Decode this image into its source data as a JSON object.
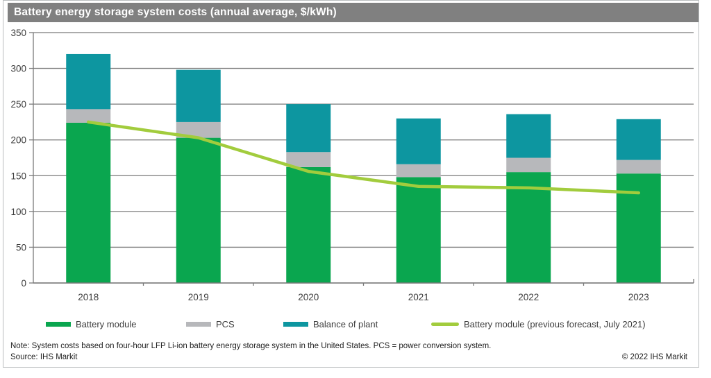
{
  "chart_data": {
    "type": "bar",
    "stacked": true,
    "title": "Battery energy storage system costs (annual average, $/kWh)",
    "categories": [
      "2018",
      "2019",
      "2020",
      "2021",
      "2022",
      "2023"
    ],
    "series": [
      {
        "name": "Battery module",
        "type": "bar",
        "color": "#0aa64f",
        "values": [
          224,
          203,
          162,
          148,
          155,
          153
        ]
      },
      {
        "name": "PCS",
        "type": "bar",
        "color": "#b7b8bb",
        "values": [
          19,
          22,
          21,
          18,
          20,
          19
        ]
      },
      {
        "name": "Balance of plant",
        "type": "bar",
        "color": "#0d96a0",
        "values": [
          77,
          73,
          67,
          64,
          61,
          57
        ]
      },
      {
        "name": "Battery module (previous forecast, July 2021)",
        "type": "line",
        "color": "#a2cc3d",
        "values": [
          225,
          203,
          156,
          135,
          133,
          126
        ]
      }
    ],
    "totals": [
      320,
      298,
      250,
      230,
      236,
      229
    ],
    "ylim": [
      0,
      350
    ],
    "yticks": [
      0,
      50,
      100,
      150,
      200,
      250,
      300,
      350
    ],
    "xlabel": "",
    "ylabel": "",
    "grid": true,
    "legend_position": "bottom"
  },
  "footer": {
    "note": "Note: System costs based on four-hour LFP Li-ion battery energy storage system in the United States. PCS = power conversion system.",
    "source": "Source: IHS Markit",
    "copyright": "© 2022 IHS Markit"
  },
  "colors": {
    "title_bar": "#808080",
    "title_text": "#ffffff",
    "grid_line": "#7a7a7a",
    "axis_line": "#7a7a7a",
    "tick_text": "#3c3c3c",
    "panel_border": "#b9bcbe"
  }
}
